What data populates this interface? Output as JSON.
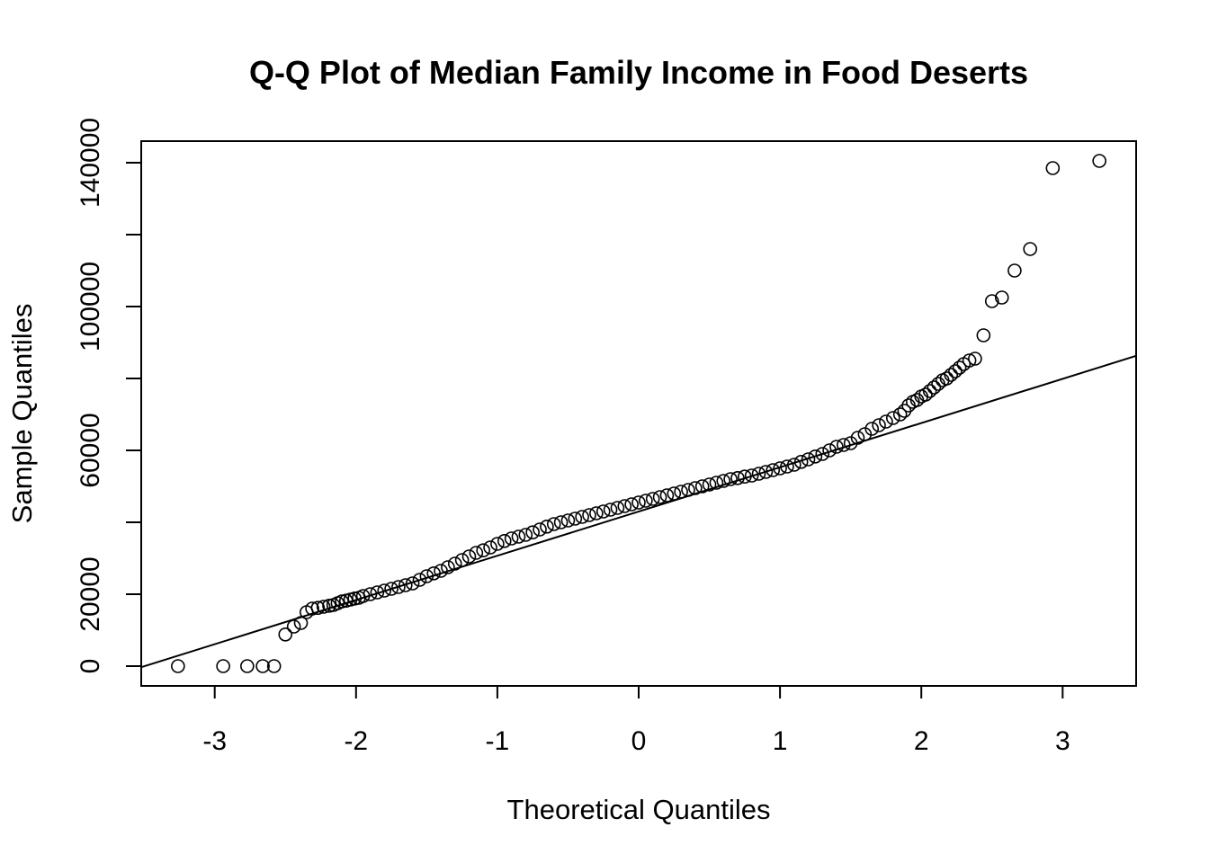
{
  "chart_data": {
    "type": "scatter",
    "title": "Q-Q Plot of Median Family Income in Food Deserts",
    "xlabel": "Theoretical Quantiles",
    "ylabel": "Sample Quantiles",
    "xlim": [
      -3.52,
      3.52
    ],
    "ylim": [
      -5500,
      146000
    ],
    "x_ticks": [
      -3,
      -2,
      -1,
      0,
      1,
      2,
      3
    ],
    "x_tick_labels": [
      "-3",
      "-2",
      "-1",
      "0",
      "1",
      "2",
      "3"
    ],
    "y_ticks": [
      0,
      20000,
      40000,
      60000,
      80000,
      100000,
      120000,
      140000
    ],
    "y_tick_labels": [
      "0",
      "20000",
      "",
      "60000",
      "",
      "100000",
      "",
      "140000"
    ],
    "grid": false,
    "reference_line": {
      "intercept": 43000,
      "slope": 12300
    },
    "points": {
      "x": [
        -3.26,
        -2.94,
        -2.77,
        -2.66,
        -2.58,
        -2.5,
        -2.44,
        -2.39,
        -2.35,
        -2.31,
        -2.27,
        -2.23,
        -2.19,
        -2.16,
        -2.13,
        -2.1,
        -2.07,
        -2.04,
        -2.01,
        -1.98,
        -1.95,
        -1.9,
        -1.85,
        -1.8,
        -1.75,
        -1.7,
        -1.65,
        -1.6,
        -1.55,
        -1.5,
        -1.45,
        -1.4,
        -1.35,
        -1.3,
        -1.25,
        -1.2,
        -1.15,
        -1.1,
        -1.05,
        -1.0,
        -0.95,
        -0.9,
        -0.85,
        -0.8,
        -0.75,
        -0.7,
        -0.65,
        -0.6,
        -0.55,
        -0.5,
        -0.45,
        -0.4,
        -0.35,
        -0.3,
        -0.25,
        -0.2,
        -0.15,
        -0.1,
        -0.05,
        0.0,
        0.05,
        0.1,
        0.15,
        0.2,
        0.25,
        0.3,
        0.35,
        0.4,
        0.45,
        0.5,
        0.55,
        0.6,
        0.65,
        0.7,
        0.75,
        0.8,
        0.85,
        0.9,
        0.95,
        1.0,
        1.05,
        1.1,
        1.15,
        1.2,
        1.25,
        1.3,
        1.35,
        1.4,
        1.45,
        1.5,
        1.55,
        1.6,
        1.65,
        1.7,
        1.75,
        1.8,
        1.85,
        1.88,
        1.91,
        1.94,
        1.97,
        2.0,
        2.03,
        2.06,
        2.09,
        2.12,
        2.15,
        2.18,
        2.21,
        2.24,
        2.27,
        2.3,
        2.34,
        2.38,
        2.44,
        2.5,
        2.57,
        2.66,
        2.77,
        2.93,
        3.26
      ],
      "y": [
        0,
        0,
        0,
        0,
        0,
        8800,
        11000,
        12000,
        15000,
        16000,
        16200,
        16500,
        16800,
        17000,
        17500,
        18000,
        18200,
        18500,
        18800,
        19000,
        19500,
        20000,
        20500,
        21000,
        21500,
        22000,
        22500,
        23000,
        24000,
        25000,
        25800,
        26500,
        27500,
        28500,
        29500,
        30500,
        31500,
        32200,
        33000,
        34000,
        34800,
        35500,
        36000,
        36500,
        37200,
        38000,
        38800,
        39500,
        40000,
        40500,
        41000,
        41500,
        42000,
        42500,
        43000,
        43500,
        44000,
        44500,
        45000,
        45500,
        46000,
        46500,
        47000,
        47500,
        48000,
        48500,
        49000,
        49500,
        50000,
        50500,
        51000,
        51500,
        52000,
        52300,
        52700,
        53000,
        53500,
        54000,
        54500,
        55000,
        55500,
        56000,
        56800,
        57500,
        58300,
        59000,
        60000,
        61000,
        61500,
        62000,
        63500,
        64500,
        66000,
        67000,
        68000,
        69000,
        70000,
        71000,
        72500,
        73500,
        74000,
        75000,
        75500,
        76500,
        77500,
        78500,
        79500,
        80000,
        81000,
        82000,
        83000,
        84000,
        85000,
        85500,
        92000,
        101500,
        102500,
        110000,
        116000,
        138500,
        140500
      ]
    }
  }
}
